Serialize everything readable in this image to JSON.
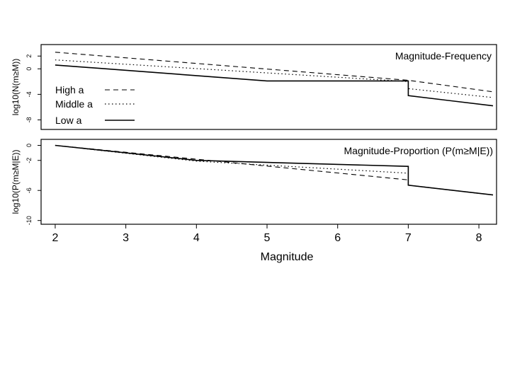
{
  "chart_data": [
    {
      "type": "line",
      "title": "Magnitude-Frequency",
      "xlabel": "",
      "ylabel": "log10(N(m≥M))",
      "xlim": [
        1.8,
        8.25
      ],
      "ylim": [
        -9.5,
        3.8
      ],
      "yticks": [
        2,
        0,
        -4,
        -8
      ],
      "legend_position": "bottom-left",
      "series": [
        {
          "name": "High a",
          "style": "dashed",
          "x": [
            2,
            7,
            7,
            8.2
          ],
          "y": [
            2.6,
            -1.8,
            -1.8,
            -3.6
          ]
        },
        {
          "name": "Middle a",
          "style": "dotted",
          "x": [
            2,
            7,
            7,
            8.2
          ],
          "y": [
            1.4,
            -2.0,
            -3.1,
            -4.5
          ]
        },
        {
          "name": "Low a",
          "style": "solid",
          "x": [
            2,
            5,
            7,
            7,
            8.2
          ],
          "y": [
            0.6,
            -1.9,
            -1.9,
            -4.2,
            -5.8
          ]
        }
      ]
    },
    {
      "type": "line",
      "title": "Magnitude-Proportion (P(m≥M|E))",
      "xlabel": "Magnitude",
      "ylabel": "log10(P(m≥M|E))",
      "xlim": [
        1.8,
        8.25
      ],
      "ylim": [
        -10.5,
        0.8
      ],
      "xticks": [
        2,
        3,
        4,
        5,
        6,
        7,
        8
      ],
      "yticks": [
        0,
        -2,
        -6,
        -10
      ],
      "series": [
        {
          "style": "dashed",
          "x": [
            2,
            7,
            7,
            8.2
          ],
          "y": [
            0,
            -4.6,
            -5.3,
            -6.6
          ]
        },
        {
          "style": "dotted",
          "x": [
            2,
            4,
            7,
            7,
            8.2
          ],
          "y": [
            0,
            -2.1,
            -3.7,
            -5.3,
            -6.6
          ]
        },
        {
          "style": "solid",
          "x": [
            2,
            4,
            7,
            7,
            8.2
          ],
          "y": [
            0,
            -2.0,
            -2.8,
            -5.3,
            -6.6
          ]
        }
      ]
    }
  ]
}
